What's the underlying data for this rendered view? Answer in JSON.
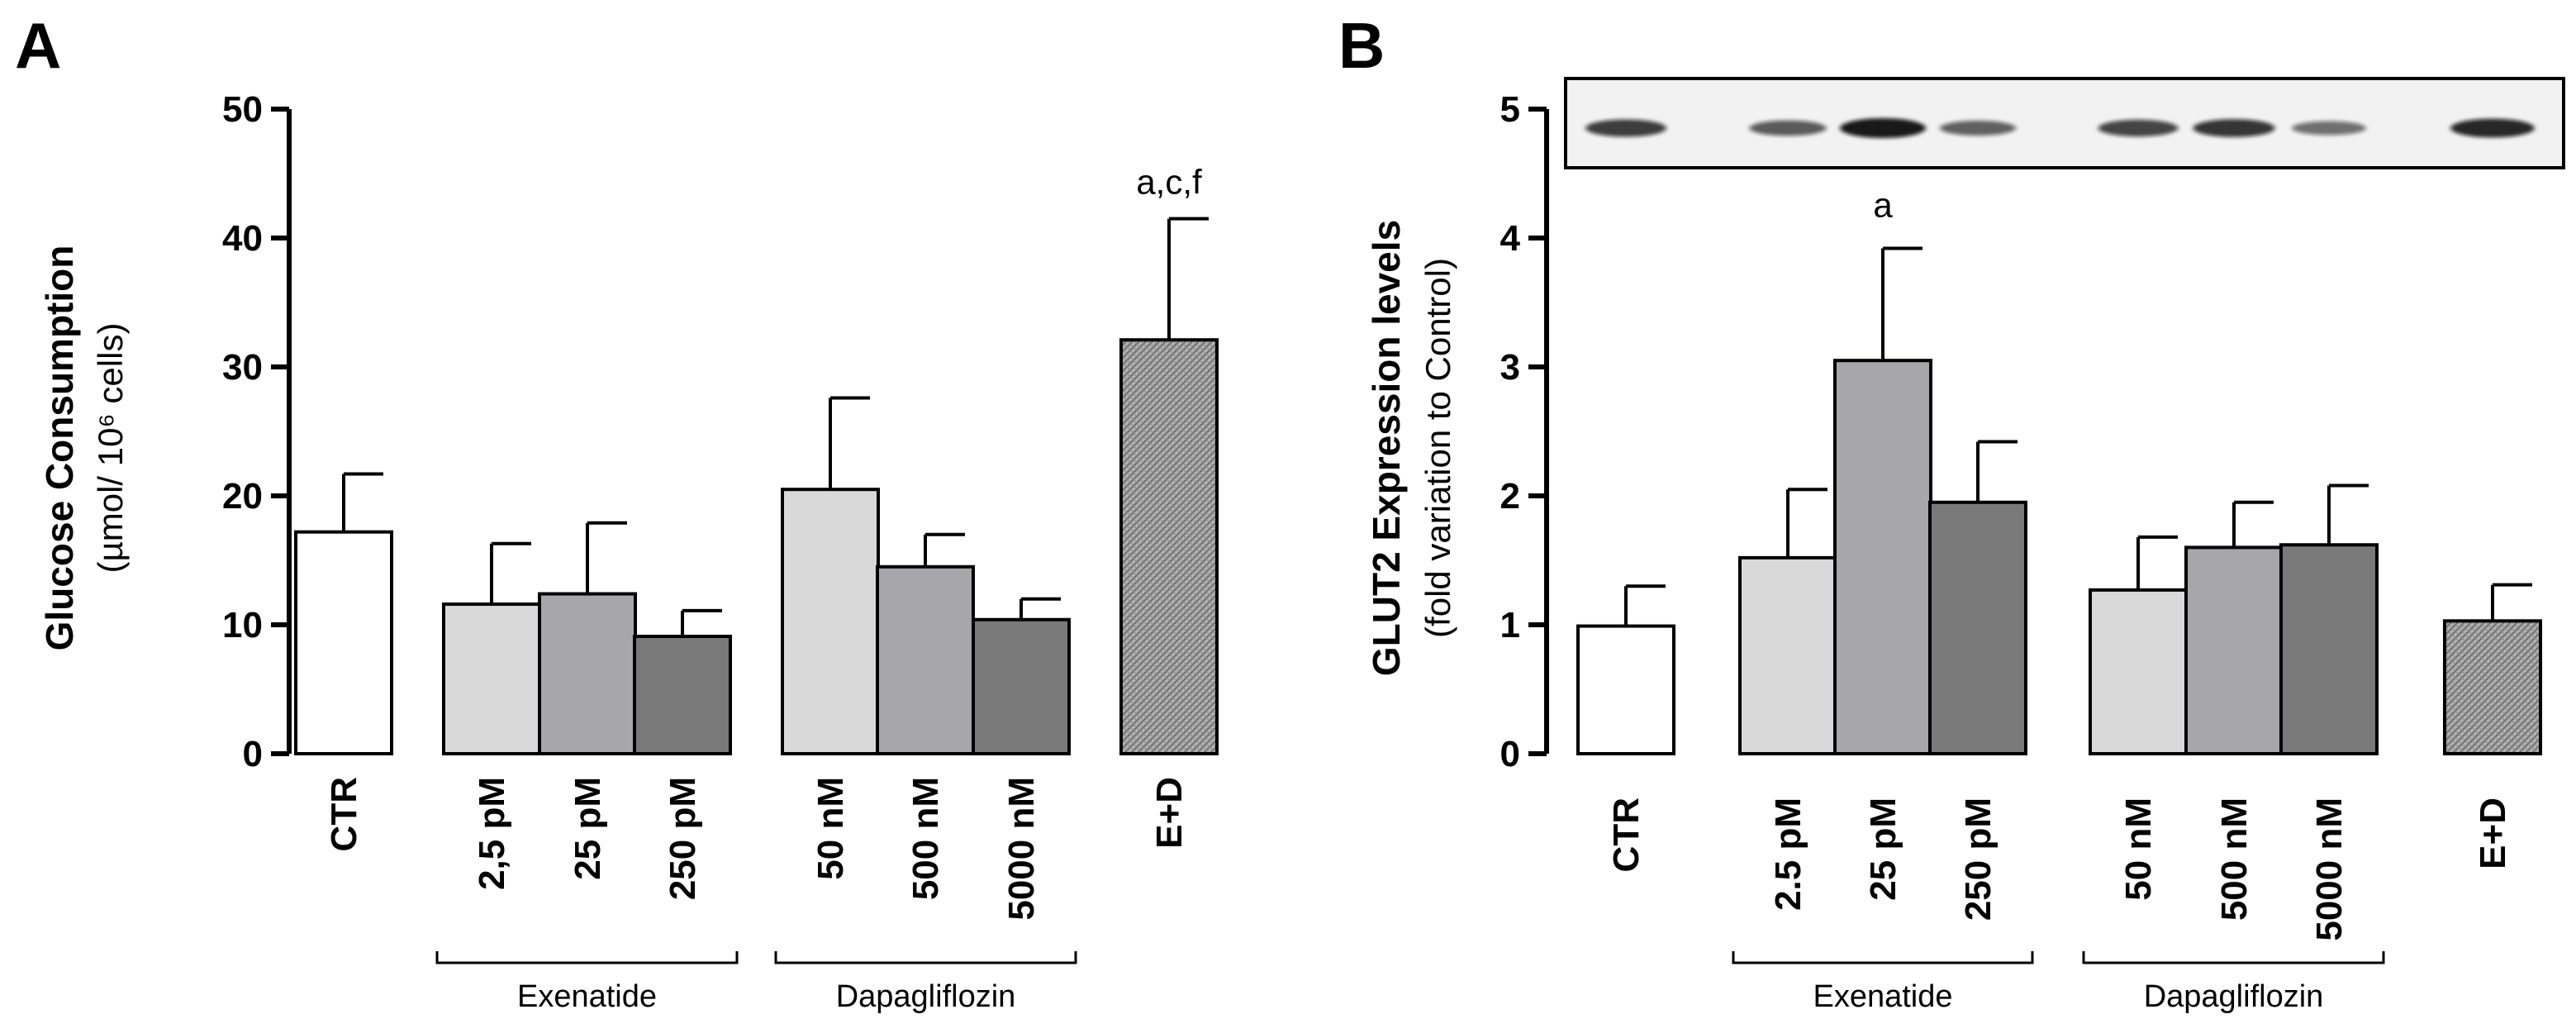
{
  "colors": {
    "ctr": "#ffffff",
    "light": "#d9d9d9",
    "mid": "#a6a6ab",
    "dark": "#7a7a7a",
    "combo": "#9a9a9a",
    "stroke": "#000000",
    "blot_bg": "#f2f2f2",
    "blot_band": "#111111"
  },
  "chart_data": [
    {
      "panel": "A",
      "type": "bar",
      "title": "",
      "ylabel": "Glucose Consumption",
      "ylabel_sub": "(µmol/ 10⁶ cells)",
      "ylim": [
        0,
        50
      ],
      "yticks": [
        "0",
        "10",
        "20",
        "30",
        "40",
        "50"
      ],
      "categories": [
        "CTR",
        "2,5 pM",
        "25 pM",
        "250 pM",
        "50 nM",
        "500 nM",
        "5000 nM",
        "E+D"
      ],
      "values": [
        17.2,
        11.6,
        12.4,
        9.1,
        20.5,
        14.5,
        10.4,
        32.1
      ],
      "errors": [
        4.5,
        4.7,
        5.5,
        2.0,
        7.1,
        2.5,
        1.6,
        9.4
      ],
      "fills": [
        "ctr",
        "light",
        "mid",
        "dark",
        "light",
        "mid",
        "dark",
        "combo"
      ],
      "annotations": [
        "",
        "",
        "",
        "",
        "",
        "",
        "",
        "a,c,f"
      ],
      "groups": [
        {
          "label": "Exenatide",
          "from": 1,
          "to": 3
        },
        {
          "label": "Dapagliflozin",
          "from": 4,
          "to": 6
        }
      ]
    },
    {
      "panel": "B",
      "type": "bar",
      "title": "",
      "ylabel": "GLUT2 Expression levels",
      "ylabel_sub": "(fold variation to Control)",
      "ylim": [
        0,
        5
      ],
      "yticks": [
        "0",
        "1",
        "2",
        "3",
        "4",
        "5"
      ],
      "categories": [
        "CTR",
        "2.5 pM",
        "25 pM",
        "250 pM",
        "50 nM",
        "500 nM",
        "5000 nM",
        "E+D"
      ],
      "values": [
        0.99,
        1.52,
        3.05,
        1.95,
        1.27,
        1.6,
        1.62,
        1.03
      ],
      "errors": [
        0.31,
        0.53,
        0.87,
        0.47,
        0.41,
        0.35,
        0.46,
        0.28
      ],
      "fills": [
        "ctr",
        "light",
        "mid",
        "dark",
        "light",
        "mid",
        "dark",
        "combo"
      ],
      "annotations": [
        "",
        "",
        "a",
        "",
        "",
        "",
        "",
        ""
      ],
      "blot_intensity": [
        0.75,
        0.55,
        1.0,
        0.5,
        0.7,
        0.8,
        0.4,
        0.9
      ],
      "groups": [
        {
          "label": "Exenatide",
          "from": 1,
          "to": 3
        },
        {
          "label": "Dapagliflozin",
          "from": 4,
          "to": 6
        }
      ]
    }
  ]
}
